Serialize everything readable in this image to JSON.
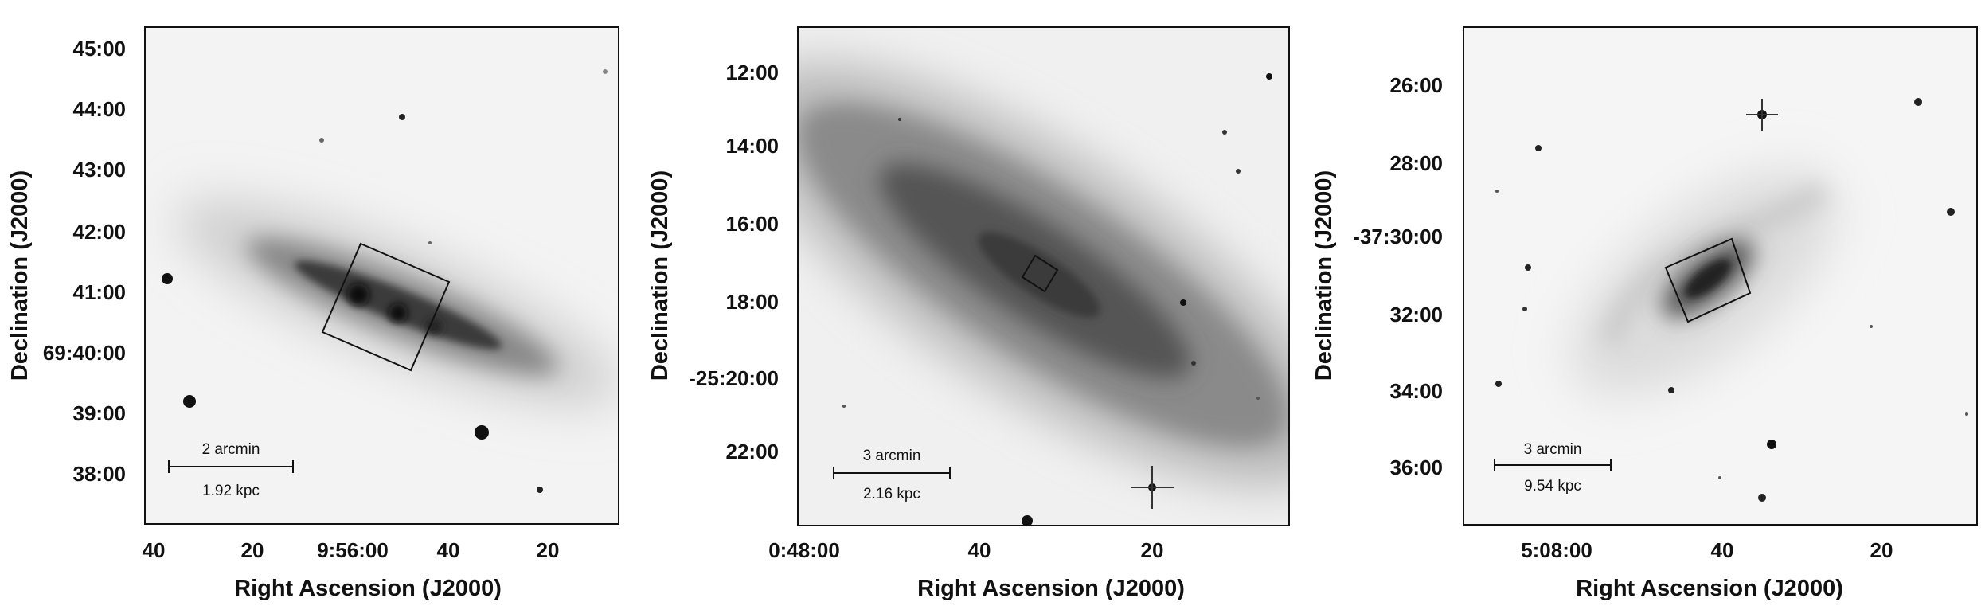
{
  "panels": [
    {
      "id": "ngc3034",
      "x_axis_title": "Right Ascension (J2000)",
      "y_axis_title": "Declination (J2000)",
      "x_ticks": [
        "40",
        "20",
        "9:56:00",
        "40",
        "20"
      ],
      "y_ticks": [
        "45:00",
        "44:00",
        "43:00",
        "42:00",
        "41:00",
        "69:40:00",
        "39:00",
        "38:00"
      ],
      "scalebar": {
        "top": "2 arcmin",
        "bottom": "1.92 kpc"
      }
    },
    {
      "id": "ngc253",
      "x_axis_title": "Right Ascension (J2000)",
      "y_axis_title": "Declination (J2000)",
      "x_ticks": [
        "0:48:00",
        "40",
        "20"
      ],
      "y_ticks": [
        "12:00",
        "14:00",
        "16:00",
        "18:00",
        "-25:20:00",
        "22:00"
      ],
      "scalebar": {
        "top": "3 arcmin",
        "bottom": "2.16 kpc"
      }
    },
    {
      "id": "ngc1808",
      "x_axis_title": "Right Ascension (J2000)",
      "y_axis_title": "Declination (J2000)",
      "x_ticks": [
        "5:08:00",
        "40",
        "20"
      ],
      "y_ticks": [
        "26:00",
        "28:00",
        "-37:30:00",
        "32:00",
        "34:00",
        "36:00"
      ],
      "scalebar": {
        "top": "3 arcmin",
        "bottom": "9.54 kpc"
      }
    }
  ],
  "colors": {
    "background": "#ffffff",
    "ink": "#111111",
    "sky": "#f4f4f4"
  }
}
